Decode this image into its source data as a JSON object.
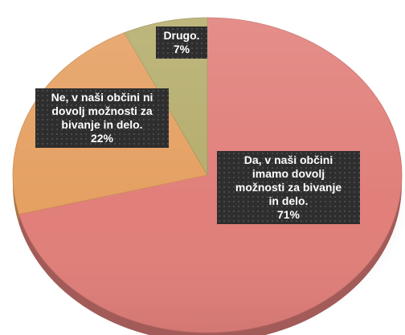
{
  "chart_data": {
    "type": "pie",
    "title": "",
    "slices": [
      {
        "label_lines": [
          "Da, v naši občini",
          "imamo dovolj",
          "možnosti  za bivanje",
          "in delo."
        ],
        "value_label": "71%",
        "value": 71,
        "color": "#E17F7A"
      },
      {
        "label_lines": [
          "Ne, v naši občini ni",
          "dovolj možnosti za",
          "bivanje in delo."
        ],
        "value_label": "22%",
        "value": 22,
        "color": "#E5A062"
      },
      {
        "label_lines": [
          "Drugo."
        ],
        "value_label": "7%",
        "value": 7,
        "color": "#B5AD6C"
      }
    ],
    "start_angle_deg": 0,
    "direction": "clockwise",
    "style": "3d-tilted",
    "legend": "none",
    "label_background": "#2E2E2E",
    "label_text_color": "#FFFFFF"
  }
}
